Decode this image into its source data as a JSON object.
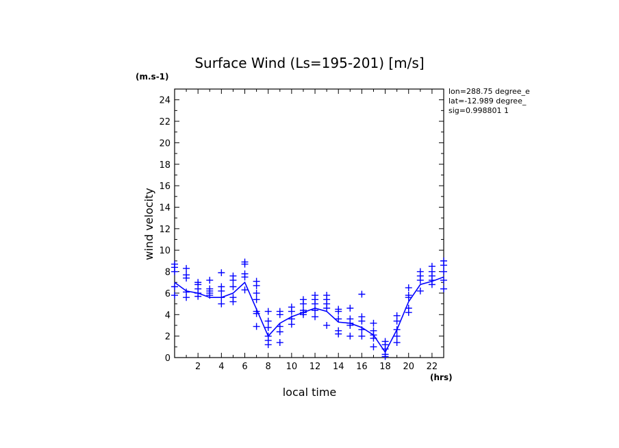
{
  "chart_data": {
    "type": "scatter",
    "title": "Surface Wind  (Ls=195-201) [m/s]",
    "ylabel": "wind velocity",
    "xlabel": "local time",
    "y_unit": "(m.s-1)",
    "x_unit": "(hrs)",
    "xlim": [
      0,
      23
    ],
    "ylim": [
      0,
      25
    ],
    "xticks": [
      2,
      4,
      6,
      8,
      10,
      12,
      14,
      16,
      18,
      20,
      22
    ],
    "yticks": [
      0,
      2,
      4,
      6,
      8,
      10,
      12,
      14,
      16,
      18,
      20,
      22,
      24
    ],
    "info_lines": [
      "lon=288.75 degree_e",
      "lat=-12.989 degree_",
      "sig=0.998801 1"
    ],
    "color": "#0000ff",
    "mean_line": {
      "x": [
        0,
        1,
        2,
        3,
        4,
        5,
        6,
        7,
        8,
        9,
        10,
        11,
        12,
        13,
        14,
        15,
        16,
        17,
        18,
        19,
        20,
        21,
        22,
        23
      ],
      "y": [
        7.0,
        6.2,
        6.0,
        5.6,
        5.6,
        6.0,
        7.0,
        4.5,
        2.0,
        3.2,
        3.8,
        4.2,
        4.6,
        4.3,
        3.3,
        3.2,
        2.8,
        2.1,
        0.5,
        2.6,
        5.2,
        6.8,
        7.1,
        7.5
      ]
    },
    "scatter": [
      {
        "x": 0,
        "y": [
          8.7,
          8.4,
          8.0,
          6.6,
          5.8
        ]
      },
      {
        "x": 1,
        "y": [
          8.3,
          7.7,
          7.4,
          6.1,
          5.6
        ]
      },
      {
        "x": 2,
        "y": [
          7.0,
          6.8,
          6.4,
          6.0,
          5.7
        ]
      },
      {
        "x": 3,
        "y": [
          7.2,
          6.4,
          6.2,
          6.0,
          5.8
        ]
      },
      {
        "x": 4,
        "y": [
          7.9,
          6.6,
          6.2,
          5.6,
          5.0
        ]
      },
      {
        "x": 5,
        "y": [
          7.6,
          7.2,
          6.6,
          5.6,
          5.2
        ]
      },
      {
        "x": 6,
        "y": [
          8.9,
          8.7,
          7.8,
          7.5,
          6.3
        ]
      },
      {
        "x": 7,
        "y": [
          7.1,
          6.7,
          6.0,
          5.4,
          4.3,
          4.1,
          2.9
        ]
      },
      {
        "x": 8,
        "y": [
          4.3,
          3.4,
          2.8,
          2.0,
          1.6,
          1.2
        ]
      },
      {
        "x": 9,
        "y": [
          4.3,
          4.0,
          2.9,
          2.4,
          1.4
        ]
      },
      {
        "x": 10,
        "y": [
          4.7,
          4.3,
          3.6,
          3.1
        ]
      },
      {
        "x": 11,
        "y": [
          5.4,
          5.0,
          4.4,
          4.2,
          4.0
        ]
      },
      {
        "x": 12,
        "y": [
          5.8,
          5.4,
          5.0,
          4.4,
          3.8
        ]
      },
      {
        "x": 13,
        "y": [
          5.8,
          5.4,
          5.0,
          4.6,
          3.0
        ]
      },
      {
        "x": 14,
        "y": [
          4.5,
          4.3,
          3.6,
          2.5,
          2.2
        ]
      },
      {
        "x": 15,
        "y": [
          4.6,
          3.6,
          3.2,
          3.0,
          2.0
        ]
      },
      {
        "x": 16,
        "y": [
          5.9,
          3.8,
          3.4,
          2.6,
          2.0
        ]
      },
      {
        "x": 17,
        "y": [
          3.2,
          2.5,
          2.1,
          1.8,
          1.0
        ]
      },
      {
        "x": 18,
        "y": [
          1.5,
          1.2,
          0.8,
          0.3,
          0.1
        ]
      },
      {
        "x": 19,
        "y": [
          3.9,
          3.4,
          2.6,
          2.0,
          1.4
        ]
      },
      {
        "x": 20,
        "y": [
          6.5,
          5.8,
          5.6,
          4.6,
          4.2
        ]
      },
      {
        "x": 21,
        "y": [
          8.0,
          7.6,
          7.2,
          6.2
        ]
      },
      {
        "x": 22,
        "y": [
          8.5,
          8.0,
          7.6,
          7.2,
          6.8
        ]
      },
      {
        "x": 23,
        "y": [
          9.0,
          8.6,
          8.0,
          7.2,
          6.4
        ]
      }
    ]
  }
}
